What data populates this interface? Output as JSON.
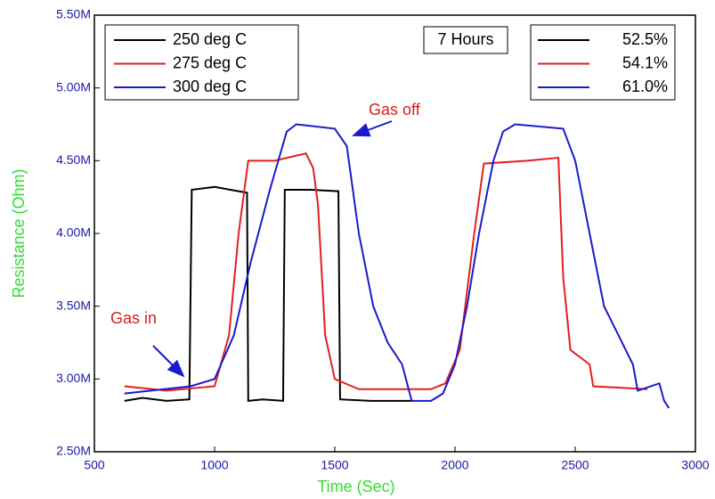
{
  "chart_data": {
    "type": "line",
    "x_label": "Time (Sec)",
    "y_label": "Resistance (Ohm)",
    "xlim": [
      500,
      3000
    ],
    "xticks": [
      500,
      1000,
      1500,
      2000,
      2500,
      3000
    ],
    "ylim": [
      2500000,
      5500000
    ],
    "yticks": [
      {
        "value": 2500000,
        "label": "2.50M"
      },
      {
        "value": 3000000,
        "label": "3.00M"
      },
      {
        "value": 3500000,
        "label": "3.50M"
      },
      {
        "value": 4000000,
        "label": "4.00M"
      },
      {
        "value": 4500000,
        "label": "4.50M"
      },
      {
        "value": 5000000,
        "label": "5.00M"
      },
      {
        "value": 5500000,
        "label": "5.50M"
      }
    ],
    "series": [
      {
        "name": "250 deg C",
        "color": "#000000",
        "x": [
          625,
          700,
          800,
          895,
          905,
          1000,
          1100,
          1135,
          1140,
          1200,
          1285,
          1292,
          1400,
          1515,
          1522,
          1650,
          1820
        ],
        "values": [
          2850000,
          2870000,
          2850000,
          2860000,
          4300000,
          4320000,
          4290000,
          4280000,
          2850000,
          2860000,
          2850000,
          4300000,
          4300000,
          4290000,
          2860000,
          2850000,
          2850000
        ]
      },
      {
        "name": "275 deg C",
        "color": "#e02020",
        "x": [
          625,
          800,
          1000,
          1060,
          1100,
          1140,
          1250,
          1380,
          1410,
          1430,
          1460,
          1500,
          1600,
          1900,
          1960,
          2020,
          2080,
          2120,
          2300,
          2430,
          2450,
          2480,
          2560,
          2575,
          2800
        ],
        "values": [
          2950000,
          2920000,
          2950000,
          3300000,
          4000000,
          4500000,
          4500000,
          4550000,
          4450000,
          4200000,
          3300000,
          3000000,
          2930000,
          2930000,
          2970000,
          3200000,
          4000000,
          4480000,
          4500000,
          4520000,
          3700000,
          3200000,
          3100000,
          2950000,
          2930000
        ]
      },
      {
        "name": "300 deg C",
        "color": "#1a1acc",
        "x": [
          625,
          900,
          1000,
          1080,
          1150,
          1230,
          1300,
          1340,
          1500,
          1550,
          1600,
          1660,
          1720,
          1780,
          1820,
          1900,
          1950,
          2000,
          2050,
          2100,
          2160,
          2200,
          2250,
          2450,
          2500,
          2560,
          2620,
          2680,
          2740,
          2760,
          2850,
          2870,
          2890
        ],
        "values": [
          2900000,
          2950000,
          3000000,
          3300000,
          3800000,
          4300000,
          4700000,
          4750000,
          4720000,
          4600000,
          4000000,
          3500000,
          3250000,
          3100000,
          2850000,
          2850000,
          2900000,
          3100000,
          3500000,
          4000000,
          4500000,
          4700000,
          4750000,
          4720000,
          4500000,
          4000000,
          3500000,
          3300000,
          3100000,
          2920000,
          2970000,
          2850000,
          2800000
        ]
      }
    ],
    "legend2": {
      "title": "7 Hours",
      "entries": [
        "52.5%",
        "54.1%",
        "61.0%"
      ]
    },
    "annotations": [
      "Gas in",
      "Gas off"
    ]
  }
}
